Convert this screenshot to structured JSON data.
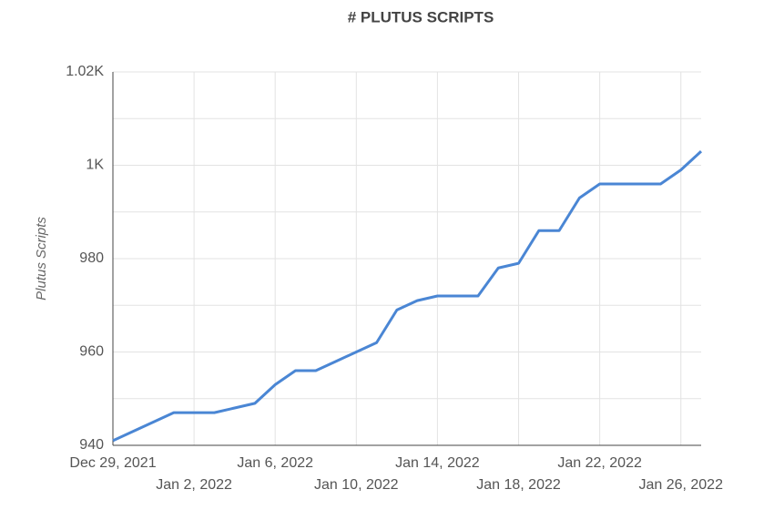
{
  "chart_data": {
    "type": "line",
    "title": "# PLUTUS SCRIPTS",
    "y_label": "Plutus Scripts",
    "x": [
      "2021-12-29",
      "2021-12-30",
      "2021-12-31",
      "2022-01-01",
      "2022-01-02",
      "2022-01-03",
      "2022-01-04",
      "2022-01-05",
      "2022-01-06",
      "2022-01-07",
      "2022-01-08",
      "2022-01-09",
      "2022-01-10",
      "2022-01-11",
      "2022-01-12",
      "2022-01-13",
      "2022-01-14",
      "2022-01-15",
      "2022-01-16",
      "2022-01-17",
      "2022-01-18",
      "2022-01-19",
      "2022-01-20",
      "2022-01-21",
      "2022-01-22",
      "2022-01-23",
      "2022-01-24",
      "2022-01-25",
      "2022-01-26",
      "2022-01-27"
    ],
    "series": [
      {
        "name": "Plutus Scripts",
        "color": "#4a86d4",
        "values": [
          941,
          943,
          945,
          947,
          947,
          947,
          948,
          949,
          953,
          956,
          956,
          958,
          960,
          962,
          969,
          971,
          972,
          972,
          972,
          978,
          979,
          986,
          986,
          993,
          996,
          996,
          996,
          996,
          999,
          1003
        ]
      }
    ],
    "xlim": [
      "2021-12-29",
      "2022-01-27"
    ],
    "xticks": [
      {
        "value": "2021-12-29",
        "label": "Dec 29, 2021"
      },
      {
        "value": "2022-01-02",
        "label": "Jan 2, 2022"
      },
      {
        "value": "2022-01-06",
        "label": "Jan 6, 2022"
      },
      {
        "value": "2022-01-10",
        "label": "Jan 10, 2022"
      },
      {
        "value": "2022-01-14",
        "label": "Jan 14, 2022"
      },
      {
        "value": "2022-01-18",
        "label": "Jan 18, 2022"
      },
      {
        "value": "2022-01-22",
        "label": "Jan 22, 2022"
      },
      {
        "value": "2022-01-26",
        "label": "Jan 26, 2022"
      }
    ],
    "ylim": [
      940,
      1020
    ],
    "yticks": [
      940,
      960,
      980,
      {
        "value": 1000,
        "label": "1K"
      },
      {
        "value": 1020,
        "label": "1.02K"
      }
    ],
    "y_minor_ticks": [
      950,
      970,
      990,
      1010
    ],
    "grid": true
  }
}
